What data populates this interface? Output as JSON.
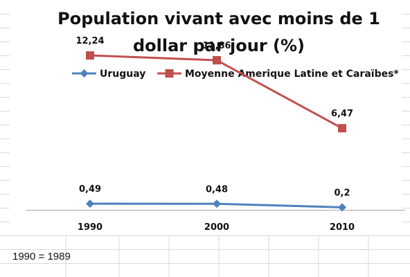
{
  "chart_data": {
    "type": "line",
    "title_lines": [
      "Population vivant avec moins de 1",
      "dollar par jour (%)"
    ],
    "categories": [
      "1990",
      "2000",
      "2010"
    ],
    "series": [
      {
        "name": "Uruguay",
        "values": [
          0.49,
          0.48,
          0.2
        ],
        "labels": [
          "0,49",
          "0,48",
          "0,2"
        ],
        "color": "#4F81BD",
        "marker": "diamond"
      },
      {
        "name": "Moyenne Amerique Latine et Caraïbes*",
        "values": [
          12.24,
          11.86,
          6.47
        ],
        "labels": [
          "12,24",
          "11,86",
          "6,47"
        ],
        "color": "#C0504D",
        "marker": "square"
      }
    ],
    "ylim": [
      0,
      14
    ],
    "legend_position": "top",
    "grid": false
  },
  "footnote": "1990 = 1989",
  "colors": {
    "axis": "#A6A6A6",
    "sheet_grid": "#D9D9D9",
    "background": "#FFFFFF"
  }
}
